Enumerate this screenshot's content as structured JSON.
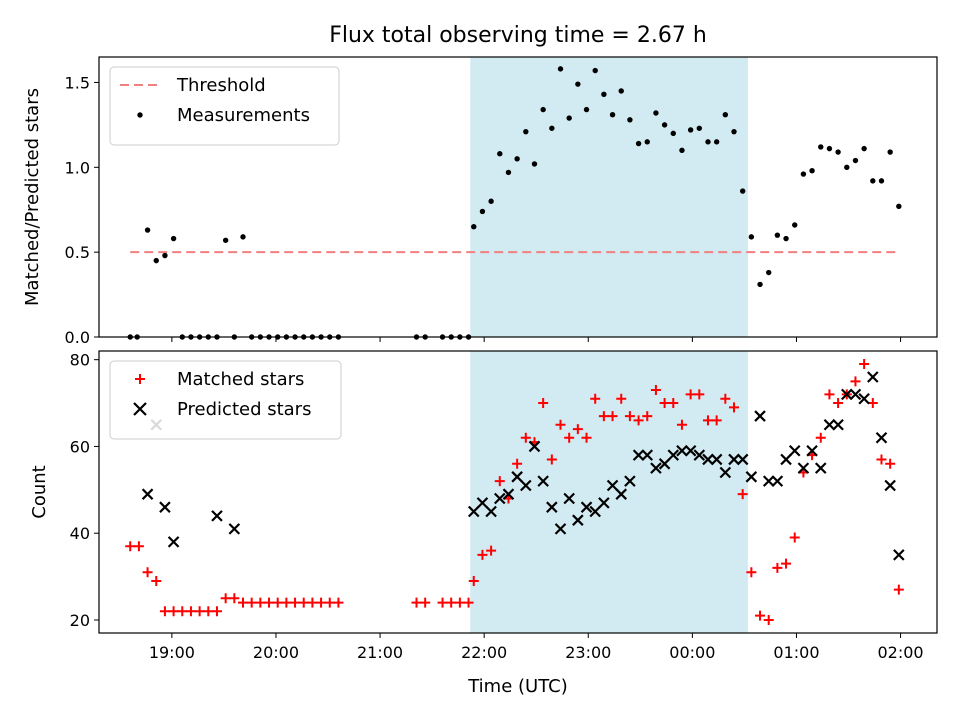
{
  "chart_data": [
    {
      "type": "scatter",
      "title": "Flux total observing time = 2.67 h",
      "xlabel": "",
      "ylabel": "Matched/Predicted stars",
      "xlim": [
        "18:18",
        "02:21"
      ],
      "ylim": [
        0,
        1.65
      ],
      "yticks": [
        "0.0",
        "0.5",
        "1.0",
        "1.5"
      ],
      "legend_position": "top-left",
      "highlight_band": {
        "start": "21:52",
        "end": "00:32",
        "color": "#add8e6"
      },
      "threshold": {
        "name": "Threshold",
        "value": 0.5,
        "x_start": "18:36",
        "x_end": "01:57",
        "color": "#f08080"
      },
      "series": [
        {
          "name": "Measurements",
          "color": "#000000",
          "points": [
            [
              "18:36",
              0
            ],
            [
              "18:40",
              0
            ],
            [
              "18:46",
              0.63
            ],
            [
              "18:51",
              0.45
            ],
            [
              "18:56",
              0.48
            ],
            [
              "19:01",
              0.58
            ],
            [
              "19:06",
              0
            ],
            [
              "19:11",
              0
            ],
            [
              "19:16",
              0
            ],
            [
              "19:21",
              0
            ],
            [
              "19:26",
              0
            ],
            [
              "19:31",
              0.57
            ],
            [
              "19:36",
              0
            ],
            [
              "19:41",
              0.59
            ],
            [
              "19:46",
              0
            ],
            [
              "19:51",
              0
            ],
            [
              "19:56",
              0
            ],
            [
              "20:01",
              0
            ],
            [
              "20:06",
              0
            ],
            [
              "20:11",
              0
            ],
            [
              "20:16",
              0
            ],
            [
              "20:21",
              0
            ],
            [
              "20:26",
              0
            ],
            [
              "20:31",
              0
            ],
            [
              "20:36",
              0
            ],
            [
              "21:21",
              0
            ],
            [
              "21:26",
              0
            ],
            [
              "21:36",
              0
            ],
            [
              "21:41",
              0
            ],
            [
              "21:46",
              0
            ],
            [
              "21:51",
              0
            ],
            [
              "21:54",
              0.65
            ],
            [
              "21:59",
              0.74
            ],
            [
              "22:04",
              0.8
            ],
            [
              "22:09",
              1.08
            ],
            [
              "22:14",
              0.97
            ],
            [
              "22:19",
              1.05
            ],
            [
              "22:24",
              1.21
            ],
            [
              "22:29",
              1.02
            ],
            [
              "22:34",
              1.34
            ],
            [
              "22:39",
              1.23
            ],
            [
              "22:44",
              1.58
            ],
            [
              "22:49",
              1.29
            ],
            [
              "22:54",
              1.49
            ],
            [
              "22:59",
              1.34
            ],
            [
              "23:04",
              1.57
            ],
            [
              "23:09",
              1.43
            ],
            [
              "23:14",
              1.31
            ],
            [
              "23:19",
              1.45
            ],
            [
              "23:24",
              1.28
            ],
            [
              "23:29",
              1.14
            ],
            [
              "23:34",
              1.15
            ],
            [
              "23:39",
              1.32
            ],
            [
              "23:44",
              1.25
            ],
            [
              "23:49",
              1.2
            ],
            [
              "23:54",
              1.1
            ],
            [
              "23:59",
              1.22
            ],
            [
              "00:04",
              1.23
            ],
            [
              "00:09",
              1.15
            ],
            [
              "00:14",
              1.15
            ],
            [
              "00:19",
              1.31
            ],
            [
              "00:24",
              1.21
            ],
            [
              "00:29",
              0.86
            ],
            [
              "00:34",
              0.59
            ],
            [
              "00:39",
              0.31
            ],
            [
              "00:44",
              0.38
            ],
            [
              "00:49",
              0.6
            ],
            [
              "00:54",
              0.58
            ],
            [
              "00:59",
              0.66
            ],
            [
              "01:04",
              0.96
            ],
            [
              "01:09",
              0.98
            ],
            [
              "01:14",
              1.12
            ],
            [
              "01:19",
              1.11
            ],
            [
              "01:24",
              1.09
            ],
            [
              "01:29",
              1.0
            ],
            [
              "01:34",
              1.04
            ],
            [
              "01:39",
              1.11
            ],
            [
              "01:44",
              0.92
            ],
            [
              "01:49",
              0.92
            ],
            [
              "01:54",
              1.09
            ],
            [
              "01:59",
              0.77
            ]
          ]
        }
      ]
    },
    {
      "type": "scatter",
      "title": "",
      "xlabel": "Time (UTC)",
      "ylabel": "Count",
      "xlim": [
        "18:18",
        "02:21"
      ],
      "ylim": [
        17,
        82
      ],
      "yticks": [
        "20",
        "40",
        "60",
        "80"
      ],
      "xticks": [
        "19:00",
        "20:00",
        "21:00",
        "22:00",
        "23:00",
        "00:00",
        "01:00",
        "02:00"
      ],
      "legend_position": "top-left",
      "highlight_band": {
        "start": "21:52",
        "end": "00:32",
        "color": "#add8e6"
      },
      "series": [
        {
          "name": "Matched stars",
          "marker": "+",
          "color": "#ff0000",
          "points": [
            [
              "18:36",
              37
            ],
            [
              "18:41",
              37
            ],
            [
              "18:46",
              31
            ],
            [
              "18:51",
              29
            ],
            [
              "18:56",
              22
            ],
            [
              "19:01",
              22
            ],
            [
              "19:06",
              22
            ],
            [
              "19:11",
              22
            ],
            [
              "19:16",
              22
            ],
            [
              "19:21",
              22
            ],
            [
              "19:26",
              22
            ],
            [
              "19:31",
              25
            ],
            [
              "19:36",
              25
            ],
            [
              "19:41",
              24
            ],
            [
              "19:46",
              24
            ],
            [
              "19:51",
              24
            ],
            [
              "19:56",
              24
            ],
            [
              "20:01",
              24
            ],
            [
              "20:06",
              24
            ],
            [
              "20:11",
              24
            ],
            [
              "20:16",
              24
            ],
            [
              "20:21",
              24
            ],
            [
              "20:26",
              24
            ],
            [
              "20:31",
              24
            ],
            [
              "20:36",
              24
            ],
            [
              "21:21",
              24
            ],
            [
              "21:26",
              24
            ],
            [
              "21:36",
              24
            ],
            [
              "21:41",
              24
            ],
            [
              "21:46",
              24
            ],
            [
              "21:51",
              24
            ],
            [
              "21:54",
              29
            ],
            [
              "21:59",
              35
            ],
            [
              "22:04",
              36
            ],
            [
              "22:09",
              52
            ],
            [
              "22:14",
              48
            ],
            [
              "22:19",
              56
            ],
            [
              "22:24",
              62
            ],
            [
              "22:29",
              61
            ],
            [
              "22:34",
              70
            ],
            [
              "22:39",
              57
            ],
            [
              "22:44",
              65
            ],
            [
              "22:49",
              62
            ],
            [
              "22:54",
              64
            ],
            [
              "22:59",
              62
            ],
            [
              "23:04",
              71
            ],
            [
              "23:09",
              67
            ],
            [
              "23:14",
              67
            ],
            [
              "23:19",
              71
            ],
            [
              "23:24",
              67
            ],
            [
              "23:29",
              66
            ],
            [
              "23:34",
              67
            ],
            [
              "23:39",
              73
            ],
            [
              "23:44",
              70
            ],
            [
              "23:49",
              70
            ],
            [
              "23:54",
              65
            ],
            [
              "23:59",
              72
            ],
            [
              "00:04",
              72
            ],
            [
              "00:09",
              66
            ],
            [
              "00:14",
              66
            ],
            [
              "00:19",
              71
            ],
            [
              "00:24",
              69
            ],
            [
              "00:29",
              49
            ],
            [
              "00:34",
              31
            ],
            [
              "00:39",
              21
            ],
            [
              "00:44",
              20
            ],
            [
              "00:49",
              32
            ],
            [
              "00:54",
              33
            ],
            [
              "00:59",
              39
            ],
            [
              "01:04",
              54
            ],
            [
              "01:09",
              58
            ],
            [
              "01:14",
              62
            ],
            [
              "01:19",
              72
            ],
            [
              "01:24",
              70
            ],
            [
              "01:29",
              72
            ],
            [
              "01:34",
              75
            ],
            [
              "01:39",
              79
            ],
            [
              "01:44",
              70
            ],
            [
              "01:49",
              57
            ],
            [
              "01:54",
              56
            ],
            [
              "01:59",
              27
            ]
          ]
        },
        {
          "name": "Predicted stars",
          "marker": "x",
          "color": "#000000",
          "points": [
            [
              "18:46",
              49
            ],
            [
              "18:51",
              65
            ],
            [
              "18:56",
              46
            ],
            [
              "19:01",
              38
            ],
            [
              "19:26",
              44
            ],
            [
              "19:36",
              41
            ],
            [
              "21:54",
              45
            ],
            [
              "21:59",
              47
            ],
            [
              "22:04",
              45
            ],
            [
              "22:09",
              48
            ],
            [
              "22:14",
              49
            ],
            [
              "22:19",
              53
            ],
            [
              "22:24",
              51
            ],
            [
              "22:29",
              60
            ],
            [
              "22:34",
              52
            ],
            [
              "22:39",
              46
            ],
            [
              "22:44",
              41
            ],
            [
              "22:49",
              48
            ],
            [
              "22:54",
              43
            ],
            [
              "22:59",
              46
            ],
            [
              "23:04",
              45
            ],
            [
              "23:09",
              47
            ],
            [
              "23:14",
              51
            ],
            [
              "23:19",
              49
            ],
            [
              "23:24",
              52
            ],
            [
              "23:29",
              58
            ],
            [
              "23:34",
              58
            ],
            [
              "23:39",
              55
            ],
            [
              "23:44",
              56
            ],
            [
              "23:49",
              58
            ],
            [
              "23:54",
              59
            ],
            [
              "23:59",
              59
            ],
            [
              "00:04",
              58
            ],
            [
              "00:09",
              57
            ],
            [
              "00:14",
              57
            ],
            [
              "00:19",
              54
            ],
            [
              "00:24",
              57
            ],
            [
              "00:29",
              57
            ],
            [
              "00:34",
              53
            ],
            [
              "00:39",
              67
            ],
            [
              "00:44",
              52
            ],
            [
              "00:49",
              52
            ],
            [
              "00:54",
              57
            ],
            [
              "00:59",
              59
            ],
            [
              "01:04",
              55
            ],
            [
              "01:09",
              59
            ],
            [
              "01:14",
              55
            ],
            [
              "01:19",
              65
            ],
            [
              "01:24",
              65
            ],
            [
              "01:29",
              72
            ],
            [
              "01:34",
              72
            ],
            [
              "01:39",
              71
            ],
            [
              "01:44",
              76
            ],
            [
              "01:49",
              62
            ],
            [
              "01:54",
              51
            ],
            [
              "01:59",
              35
            ]
          ]
        }
      ]
    }
  ]
}
